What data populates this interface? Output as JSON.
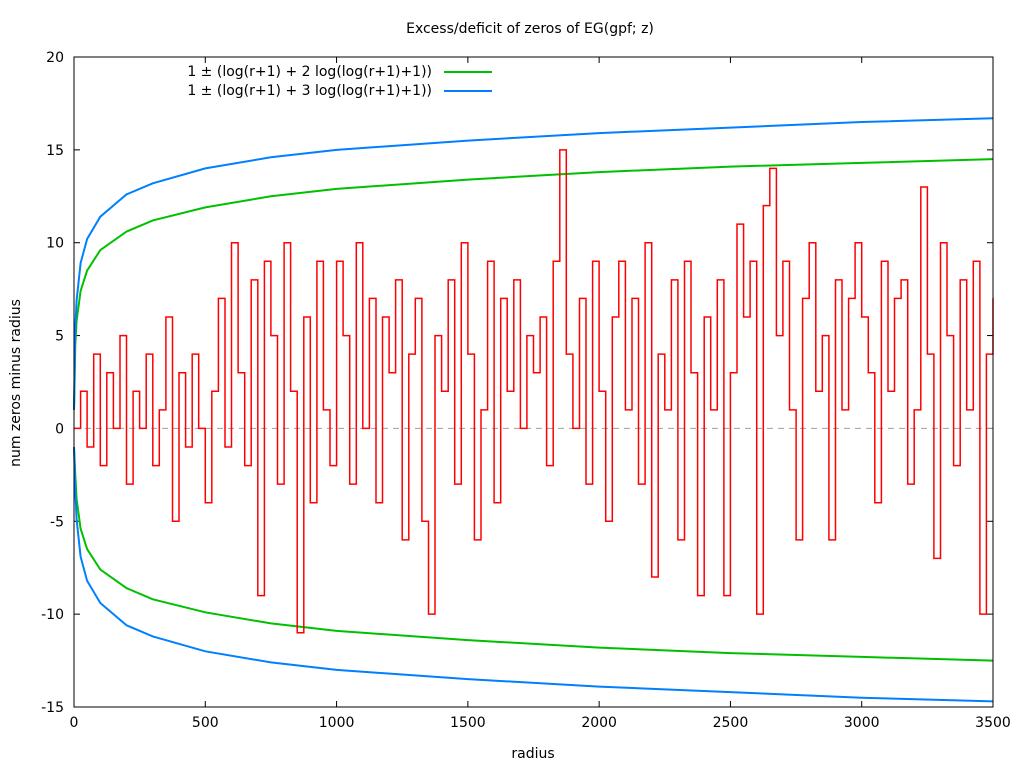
{
  "chart_data": {
    "type": "line",
    "title": "Excess/deficit of zeros of EG(gpf; z)",
    "xlabel": "radius",
    "ylabel": "num zeros minus radius",
    "xlim": [
      0,
      3500
    ],
    "ylim": [
      -15,
      20
    ],
    "xticks": [
      0,
      500,
      1000,
      1500,
      2000,
      2500,
      3000,
      3500
    ],
    "yticks": [
      -15,
      -10,
      -5,
      0,
      5,
      10,
      15,
      20
    ],
    "grid": false,
    "legend_position": "top-left",
    "zero_line": {
      "y": 0,
      "color": "#a0a0a0",
      "style": "dashed"
    },
    "series": [
      {
        "name": "1 ± (log(r+1) + 2 log(log(r+1)+1))",
        "color": "#00c000",
        "x": [
          0,
          5,
          10,
          25,
          50,
          100,
          200,
          300,
          500,
          750,
          1000,
          1500,
          2000,
          2500,
          3000,
          3500
        ],
        "upper": [
          1,
          4.5,
          5.8,
          7.4,
          8.5,
          9.6,
          10.6,
          11.2,
          11.9,
          12.5,
          12.9,
          13.4,
          13.8,
          14.1,
          14.3,
          14.5
        ],
        "lower": [
          -1,
          -2.5,
          -3.8,
          -5.4,
          -6.5,
          -7.6,
          -8.6,
          -9.2,
          -9.9,
          -10.5,
          -10.9,
          -11.4,
          -11.8,
          -12.1,
          -12.3,
          -12.5
        ]
      },
      {
        "name": "1 ± (log(r+1) + 3 log(log(r+1)+1))",
        "color": "#0080ff",
        "x": [
          0,
          5,
          10,
          25,
          50,
          100,
          200,
          300,
          500,
          750,
          1000,
          1500,
          2000,
          2500,
          3000,
          3500
        ],
        "upper": [
          1,
          5.4,
          6.9,
          8.9,
          10.2,
          11.4,
          12.6,
          13.2,
          14.0,
          14.6,
          15.0,
          15.5,
          15.9,
          16.2,
          16.5,
          16.7
        ],
        "lower": [
          -1,
          -3.4,
          -4.9,
          -6.9,
          -8.2,
          -9.4,
          -10.6,
          -11.2,
          -12.0,
          -12.6,
          -13.0,
          -13.5,
          -13.9,
          -14.2,
          -14.5,
          -14.7
        ]
      },
      {
        "name": "",
        "color": "#ff0000",
        "x": [
          0,
          25,
          50,
          75,
          100,
          125,
          150,
          175,
          200,
          225,
          250,
          275,
          300,
          325,
          350,
          375,
          400,
          425,
          450,
          475,
          500,
          525,
          550,
          575,
          600,
          625,
          650,
          675,
          700,
          725,
          750,
          775,
          800,
          825,
          850,
          875,
          900,
          925,
          950,
          975,
          1000,
          1025,
          1050,
          1075,
          1100,
          1125,
          1150,
          1175,
          1200,
          1225,
          1250,
          1275,
          1300,
          1325,
          1350,
          1375,
          1400,
          1425,
          1450,
          1475,
          1500,
          1525,
          1550,
          1575,
          1600,
          1625,
          1650,
          1675,
          1700,
          1725,
          1750,
          1775,
          1800,
          1825,
          1850,
          1875,
          1900,
          1925,
          1950,
          1975,
          2000,
          2025,
          2050,
          2075,
          2100,
          2125,
          2150,
          2175,
          2200,
          2225,
          2250,
          2275,
          2300,
          2325,
          2350,
          2375,
          2400,
          2425,
          2450,
          2475,
          2500,
          2525,
          2550,
          2575,
          2600,
          2625,
          2650,
          2675,
          2700,
          2725,
          2750,
          2775,
          2800,
          2825,
          2850,
          2875,
          2900,
          2925,
          2950,
          2975,
          3000,
          3025,
          3050,
          3075,
          3100,
          3125,
          3150,
          3175,
          3200,
          3225,
          3250,
          3275,
          3300,
          3325,
          3350,
          3375,
          3400,
          3425,
          3450,
          3475,
          3500
        ],
        "y": [
          0,
          2,
          -1,
          4,
          -2,
          3,
          0,
          5,
          -3,
          2,
          0,
          4,
          -2,
          1,
          6,
          -5,
          3,
          -1,
          4,
          0,
          -4,
          2,
          7,
          -1,
          10,
          3,
          -2,
          8,
          -9,
          9,
          5,
          -3,
          10,
          2,
          -11,
          6,
          -4,
          9,
          1,
          -2,
          9,
          5,
          -3,
          10,
          0,
          7,
          -4,
          6,
          3,
          8,
          -6,
          4,
          7,
          -5,
          -10,
          5,
          2,
          8,
          -3,
          10,
          4,
          -6,
          1,
          9,
          -4,
          7,
          2,
          8,
          0,
          5,
          3,
          6,
          -2,
          9,
          15,
          4,
          0,
          7,
          -3,
          9,
          2,
          -5,
          6,
          9,
          1,
          7,
          -3,
          10,
          -8,
          4,
          1,
          8,
          -6,
          9,
          3,
          -9,
          6,
          1,
          8,
          -9,
          3,
          11,
          6,
          9,
          -10,
          12,
          14,
          5,
          9,
          1,
          -6,
          7,
          10,
          2,
          5,
          -6,
          8,
          1,
          7,
          10,
          6,
          3,
          -4,
          9,
          2,
          7,
          8,
          -3,
          1,
          13,
          4,
          -7,
          10,
          5,
          -2,
          8,
          1,
          9,
          -10,
          4,
          7
        ]
      }
    ]
  }
}
